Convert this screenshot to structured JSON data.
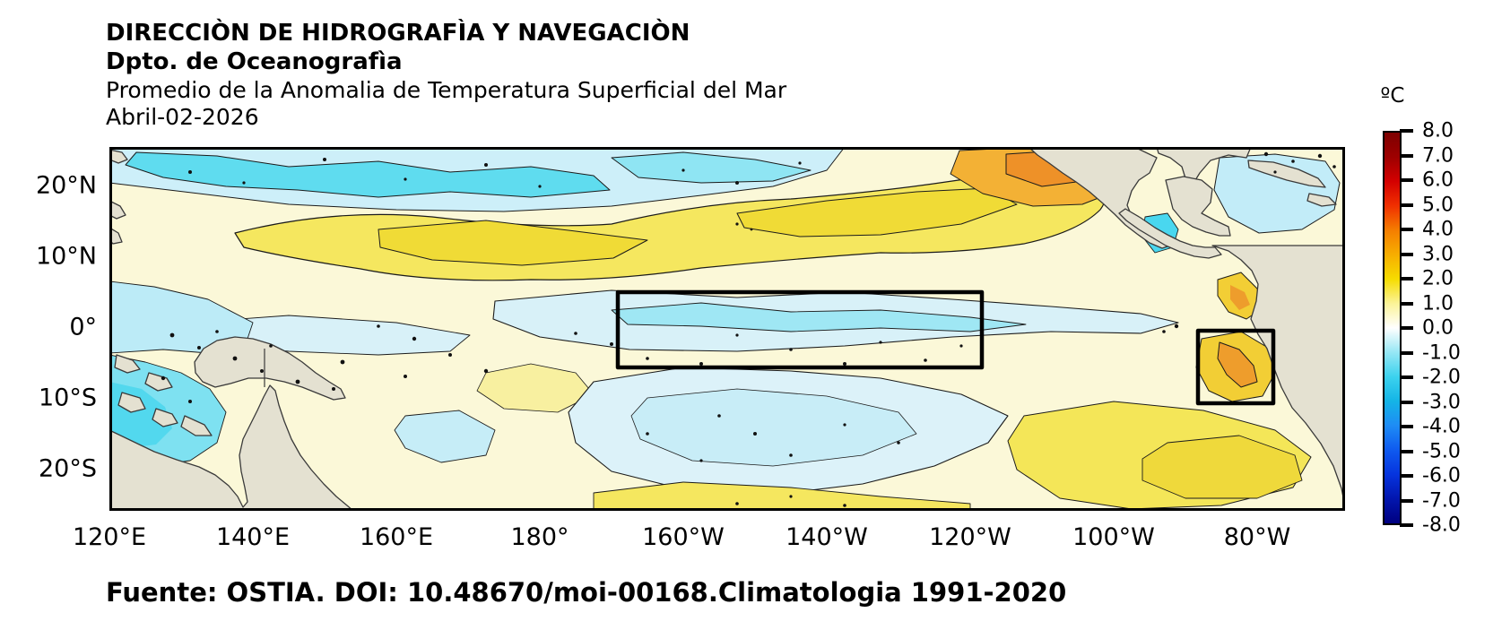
{
  "header": {
    "line1": "DIRECCIÒN DE HIDROGRAFÌA Y NAVEGACIÒN",
    "line2": "Dpto. de Oceanografìa",
    "line3": "Promedio de la Anomalia de Temperatura Superficial del Mar",
    "line4": "Abril-02-2026"
  },
  "map": {
    "lat_labels": [
      "20°N",
      "10°N",
      "0°",
      "10°S",
      "20°S"
    ],
    "lon_labels": [
      "120°E",
      "140°E",
      "160°E",
      "180°",
      "160°W",
      "140°W",
      "120°W",
      "100°W",
      "80°W"
    ]
  },
  "colorbar": {
    "unit": "ºC",
    "tick_labels": [
      "8.0",
      "7.0",
      "6.0",
      "5.0",
      "4.0",
      "3.0",
      "2.0",
      "1.0",
      "0.0",
      "-1.0",
      "-2.0",
      "-3.0",
      "-4.0",
      "-5.0",
      "-6.0",
      "-7.0",
      "-8.0"
    ],
    "gradient_colors_top_to_bottom": [
      "#7E0101",
      "#9E0000",
      "#D40000",
      "#F03000",
      "#F57E00",
      "#F7AE00",
      "#F6DC00",
      "#FBF398",
      "#FFFFFF",
      "#96E7F5",
      "#3CD2EE",
      "#14B4E6",
      "#1E8CF5",
      "#0F5AEF",
      "#0634DE",
      "#0216AE",
      "#000080"
    ]
  },
  "map_colors": {
    "ocean_base": "#FBF8D8",
    "warm_yellow": "#F5E75F",
    "warm_orange": "#F3B135",
    "cool_cyan": "#5FDCEF",
    "cool_pale_blue": "#D8F1F8",
    "land": "#E4E1D1"
  },
  "footer": {
    "source": "Fuente: OSTIA. DOI: 10.48670/moi-00168.Climatologia 1991-2020"
  }
}
